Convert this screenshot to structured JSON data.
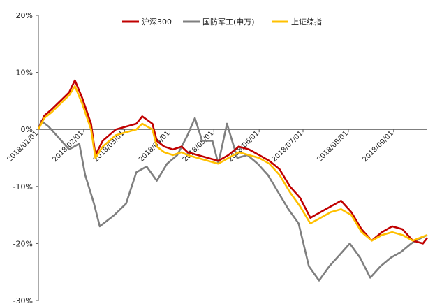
{
  "chart_data": {
    "type": "line",
    "ylim": [
      -30,
      20
    ],
    "y_ticks": [
      {
        "v": 20,
        "label": "20%"
      },
      {
        "v": 10,
        "label": "10%"
      },
      {
        "v": 0,
        "label": "0%"
      },
      {
        "v": -10,
        "label": "-10%"
      },
      {
        "v": -20,
        "label": "-20%"
      },
      {
        "v": -30,
        "label": "-30%"
      }
    ],
    "x_ticks": [
      "2018/01/01",
      "2018/02/01",
      "2018/03/01",
      "2018/04/01",
      "2018/05/01",
      "2018/06/01",
      "2018/07/01",
      "2018/08/01",
      "2018/09/01"
    ],
    "x_range": [
      "2018/01/01",
      "2018/09/24"
    ],
    "legend_position": "top",
    "grid": false,
    "series": [
      {
        "name": "沪深300",
        "color": "#c00000",
        "points": [
          [
            "2018/01/01",
            0
          ],
          [
            "2018/01/05",
            2.4
          ],
          [
            "2018/01/10",
            3.5
          ],
          [
            "2018/01/16",
            5.0
          ],
          [
            "2018/01/22",
            6.5
          ],
          [
            "2018/01/26",
            8.6
          ],
          [
            "2018/01/31",
            5.5
          ],
          [
            "2018/02/06",
            1.0
          ],
          [
            "2018/02/09",
            -4.5
          ],
          [
            "2018/02/14",
            -2.0
          ],
          [
            "2018/02/23",
            0
          ],
          [
            "2018/03/02",
            0.5
          ],
          [
            "2018/03/09",
            1.0
          ],
          [
            "2018/03/13",
            2.3
          ],
          [
            "2018/03/20",
            1.0
          ],
          [
            "2018/03/23",
            -2.0
          ],
          [
            "2018/03/28",
            -3.0
          ],
          [
            "2018/04/03",
            -3.5
          ],
          [
            "2018/04/09",
            -3.0
          ],
          [
            "2018/04/13",
            -4.0
          ],
          [
            "2018/04/20",
            -4.5
          ],
          [
            "2018/04/27",
            -5.0
          ],
          [
            "2018/05/04",
            -5.5
          ],
          [
            "2018/05/11",
            -4.5
          ],
          [
            "2018/05/18",
            -3.0
          ],
          [
            "2018/05/25",
            -3.5
          ],
          [
            "2018/06/01",
            -4.5
          ],
          [
            "2018/06/08",
            -5.5
          ],
          [
            "2018/06/15",
            -7.0
          ],
          [
            "2018/06/22",
            -10.0
          ],
          [
            "2018/06/29",
            -12.0
          ],
          [
            "2018/07/06",
            -15.5
          ],
          [
            "2018/07/13",
            -14.5
          ],
          [
            "2018/07/20",
            -13.5
          ],
          [
            "2018/07/27",
            -12.5
          ],
          [
            "2018/08/03",
            -14.5
          ],
          [
            "2018/08/10",
            -17.5
          ],
          [
            "2018/08/17",
            -19.5
          ],
          [
            "2018/08/24",
            -18.0
          ],
          [
            "2018/08/31",
            -17.0
          ],
          [
            "2018/09/07",
            -17.5
          ],
          [
            "2018/09/14",
            -19.5
          ],
          [
            "2018/09/21",
            -20.0
          ],
          [
            "2018/09/24",
            -19.0
          ]
        ]
      },
      {
        "name": "国防军工(申万)",
        "color": "#7f7f7f",
        "points": [
          [
            "2018/01/01",
            0
          ],
          [
            "2018/01/03",
            1.5
          ],
          [
            "2018/01/08",
            0.5
          ],
          [
            "2018/01/15",
            -1.5
          ],
          [
            "2018/01/22",
            -3.5
          ],
          [
            "2018/01/29",
            -2.5
          ],
          [
            "2018/02/02",
            -8.0
          ],
          [
            "2018/02/08",
            -13.0
          ],
          [
            "2018/02/12",
            -17.0
          ],
          [
            "2018/02/22",
            -15.0
          ],
          [
            "2018/03/02",
            -13.0
          ],
          [
            "2018/03/09",
            -7.5
          ],
          [
            "2018/03/16",
            -6.5
          ],
          [
            "2018/03/23",
            -9.0
          ],
          [
            "2018/03/30",
            -6.0
          ],
          [
            "2018/04/06",
            -4.5
          ],
          [
            "2018/04/13",
            -1.0
          ],
          [
            "2018/04/18",
            2.0
          ],
          [
            "2018/04/23",
            -2.0
          ],
          [
            "2018/04/30",
            -2.0
          ],
          [
            "2018/05/04",
            -6.0
          ],
          [
            "2018/05/10",
            1.0
          ],
          [
            "2018/05/17",
            -5.0
          ],
          [
            "2018/05/24",
            -4.5
          ],
          [
            "2018/05/31",
            -6.0
          ],
          [
            "2018/06/07",
            -8.0
          ],
          [
            "2018/06/14",
            -11.0
          ],
          [
            "2018/06/21",
            -14.0
          ],
          [
            "2018/06/28",
            -16.5
          ],
          [
            "2018/07/05",
            -24.0
          ],
          [
            "2018/07/12",
            -26.5
          ],
          [
            "2018/07/19",
            -24.0
          ],
          [
            "2018/07/26",
            -22.0
          ],
          [
            "2018/08/02",
            -20.0
          ],
          [
            "2018/08/09",
            -22.5
          ],
          [
            "2018/08/16",
            -26.0
          ],
          [
            "2018/08/23",
            -24.0
          ],
          [
            "2018/08/30",
            -22.5
          ],
          [
            "2018/09/06",
            -21.5
          ],
          [
            "2018/09/13",
            -20.0
          ],
          [
            "2018/09/20",
            -19.0
          ],
          [
            "2018/09/24",
            -18.5
          ]
        ]
      },
      {
        "name": "上证综指",
        "color": "#ffc000",
        "points": [
          [
            "2018/01/01",
            0
          ],
          [
            "2018/01/05",
            2.0
          ],
          [
            "2018/01/10",
            3.0
          ],
          [
            "2018/01/16",
            4.5
          ],
          [
            "2018/01/22",
            6.0
          ],
          [
            "2018/01/26",
            7.6
          ],
          [
            "2018/01/31",
            4.5
          ],
          [
            "2018/02/06",
            0
          ],
          [
            "2018/02/09",
            -5.0
          ],
          [
            "2018/02/14",
            -3.0
          ],
          [
            "2018/02/23",
            -1.0
          ],
          [
            "2018/03/02",
            -0.5
          ],
          [
            "2018/03/09",
            0
          ],
          [
            "2018/03/13",
            1.0
          ],
          [
            "2018/03/20",
            0
          ],
          [
            "2018/03/23",
            -3.0
          ],
          [
            "2018/03/28",
            -4.0
          ],
          [
            "2018/04/03",
            -4.5
          ],
          [
            "2018/04/09",
            -4.0
          ],
          [
            "2018/04/13",
            -4.5
          ],
          [
            "2018/04/20",
            -5.0
          ],
          [
            "2018/04/27",
            -5.5
          ],
          [
            "2018/05/04",
            -6.0
          ],
          [
            "2018/05/11",
            -5.0
          ],
          [
            "2018/05/18",
            -4.0
          ],
          [
            "2018/05/25",
            -4.5
          ],
          [
            "2018/06/01",
            -5.0
          ],
          [
            "2018/06/08",
            -6.0
          ],
          [
            "2018/06/15",
            -8.0
          ],
          [
            "2018/06/22",
            -11.0
          ],
          [
            "2018/06/29",
            -13.5
          ],
          [
            "2018/07/06",
            -16.5
          ],
          [
            "2018/07/13",
            -15.5
          ],
          [
            "2018/07/20",
            -14.5
          ],
          [
            "2018/07/27",
            -14.0
          ],
          [
            "2018/08/03",
            -15.0
          ],
          [
            "2018/08/10",
            -18.0
          ],
          [
            "2018/08/17",
            -19.5
          ],
          [
            "2018/08/24",
            -18.5
          ],
          [
            "2018/08/31",
            -18.0
          ],
          [
            "2018/09/07",
            -18.5
          ],
          [
            "2018/09/14",
            -19.5
          ],
          [
            "2018/09/21",
            -18.8
          ],
          [
            "2018/09/24",
            -18.5
          ]
        ]
      }
    ]
  }
}
